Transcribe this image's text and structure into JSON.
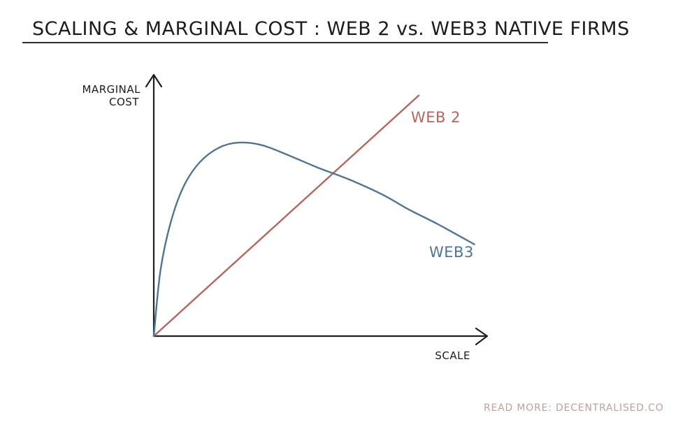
{
  "header": {
    "title": "SCALING & MARGINAL COST :  WEB 2 vs. WEB3  NATIVE  FIRMS"
  },
  "footer": {
    "text": "READ MORE:  DECENTRALISED.CO"
  },
  "chart_data": {
    "type": "line",
    "title": "SCALING & MARGINAL COST :  WEB 2 vs. WEB3  NATIVE  FIRMS",
    "ylabel_line1": "MARGINAL",
    "ylabel_line2": "COST",
    "xlabel": "SCALE",
    "xlim": [
      0,
      100
    ],
    "ylim": [
      0,
      100
    ],
    "grid": false,
    "legend": "inline labels",
    "series": [
      {
        "name": "WEB 2",
        "color": "#b5655e",
        "x": [
          0,
          81
        ],
        "y": [
          0,
          97
        ]
      },
      {
        "name": "WEB3",
        "color": "#4f7691",
        "x": [
          0,
          2,
          5,
          9,
          14,
          20,
          26,
          33,
          41,
          50,
          60,
          70,
          78,
          87,
          98
        ],
        "y": [
          0,
          26,
          45,
          60,
          70,
          76,
          78,
          77,
          73,
          68,
          63,
          57,
          51,
          45,
          37
        ]
      }
    ]
  }
}
